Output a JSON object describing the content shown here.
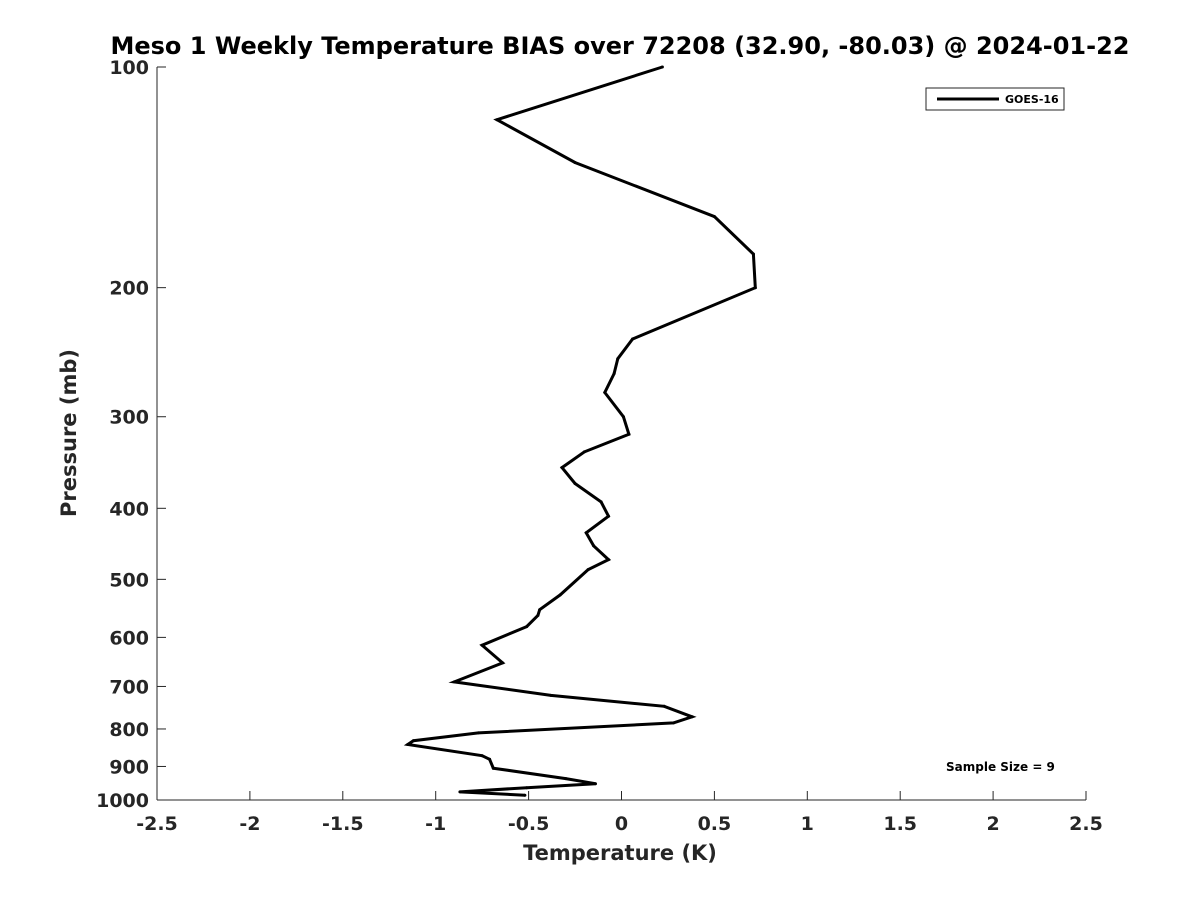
{
  "chart_data": {
    "type": "line",
    "title": "Meso 1 Weekly Temperature BIAS over 72208 (32.90, -80.03) @ 2024-01-22",
    "xlabel": "Temperature (K)",
    "ylabel": "Pressure (mb)",
    "xlim": [
      -2.5,
      2.5
    ],
    "ylim": [
      100,
      1000
    ],
    "y_scale": "log",
    "y_reversed": true,
    "x_ticks": [
      "-2.5",
      "-2",
      "-1.5",
      "-1",
      "-0.5",
      "0",
      "0.5",
      "1",
      "1.5",
      "2",
      "2.5"
    ],
    "y_ticks": [
      "100",
      "200",
      "300",
      "400",
      "500",
      "600",
      "700",
      "800",
      "900",
      "1000"
    ],
    "grid": false,
    "legend_position": "top-right",
    "series": [
      {
        "name": "GOES-16",
        "color": "#000000",
        "x": [
          0.22,
          -0.67,
          -0.25,
          0.5,
          0.71,
          0.72,
          0.06,
          -0.02,
          -0.04,
          -0.09,
          0.01,
          0.04,
          -0.2,
          -0.32,
          -0.25,
          -0.11,
          -0.07,
          -0.19,
          -0.15,
          -0.07,
          -0.18,
          -0.33,
          -0.44,
          -0.45,
          -0.51,
          -0.75,
          -0.64,
          -0.9,
          -0.38,
          0.23,
          0.38,
          0.28,
          -0.77,
          -1.12,
          -1.15,
          -0.75,
          -0.71,
          -0.69,
          -0.3,
          -0.14,
          -0.51,
          -0.87,
          -0.52
        ],
        "y": [
          100,
          118,
          135,
          160,
          180,
          200,
          235,
          250,
          262,
          278,
          300,
          317,
          335,
          352,
          370,
          392,
          410,
          432,
          450,
          470,
          485,
          525,
          550,
          560,
          580,
          615,
          650,
          690,
          720,
          745,
          770,
          785,
          810,
          830,
          840,
          870,
          880,
          905,
          935,
          950,
          962,
          975,
          985
        ]
      }
    ],
    "annotations": [
      "Sample Size = 9"
    ]
  }
}
